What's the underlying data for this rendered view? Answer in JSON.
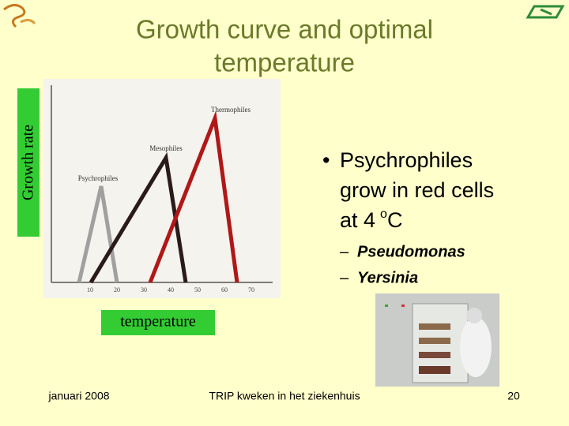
{
  "title": {
    "lines": [
      "Growth curve and optimal",
      "temperature"
    ]
  },
  "figure": {
    "y_label": "Growth rate",
    "x_label": "temperature",
    "curve_labels": [
      "Psychrophiles",
      "Mesophiles",
      "Thermophiles"
    ],
    "x_ticks": [
      10,
      20,
      30,
      40,
      50,
      60,
      70
    ]
  },
  "bullet": {
    "lines": [
      "Psychrophiles",
      "grow in red cells",
      "at 4"
    ],
    "superscript": "o",
    "unit": "C"
  },
  "sub_bullets": [
    "Pseudomonas",
    "Yersinia"
  ],
  "footer": {
    "date": "januari 2008",
    "center": "TRIP kweken in het ziekenhuis",
    "page": "20"
  }
}
